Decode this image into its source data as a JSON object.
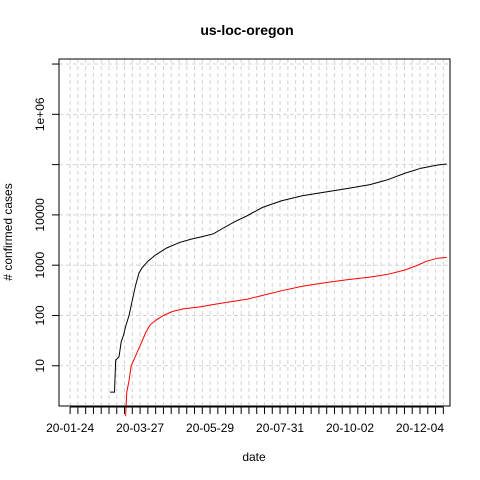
{
  "chart_data": {
    "type": "line",
    "title": "us-loc-oregon",
    "xlabel": "date",
    "ylabel": "# confirmed cases",
    "y_scale": "log",
    "y_tick_labels": [
      "10",
      "100",
      "1000",
      "10000",
      "1e+06"
    ],
    "y_ticks": [
      10,
      100,
      1000,
      10000,
      1000000
    ],
    "x_tick_labels": [
      "20-01-24",
      "20-03-27",
      "20-05-29",
      "20-07-31",
      "20-10-02",
      "20-12-04"
    ],
    "x_ticks": [
      "2020-01-24",
      "2020-03-27",
      "2020-05-29",
      "2020-07-31",
      "2020-10-02",
      "2020-12-04"
    ],
    "xlim": [
      "2020-01-14",
      "2020-12-31"
    ],
    "ylim_log10": [
      0.2,
      7.1
    ],
    "grid": true,
    "series": [
      {
        "color": "#000000",
        "points": [
          [
            "2020-02-29",
            3
          ],
          [
            "2020-03-04",
            3
          ],
          [
            "2020-03-05",
            13
          ],
          [
            "2020-03-08",
            15
          ],
          [
            "2020-03-10",
            30
          ],
          [
            "2020-03-12",
            40
          ],
          [
            "2020-03-14",
            60
          ],
          [
            "2020-03-17",
            100
          ],
          [
            "2020-03-20",
            200
          ],
          [
            "2020-03-23",
            400
          ],
          [
            "2020-03-26",
            700
          ],
          [
            "2020-03-29",
            900
          ],
          [
            "2020-04-03",
            1200
          ],
          [
            "2020-04-10",
            1600
          ],
          [
            "2020-04-20",
            2200
          ],
          [
            "2020-05-01",
            2800
          ],
          [
            "2020-05-12",
            3300
          ],
          [
            "2020-05-22",
            3700
          ],
          [
            "2020-06-01",
            4200
          ],
          [
            "2020-06-10",
            5500
          ],
          [
            "2020-06-20",
            7300
          ],
          [
            "2020-07-01",
            9500
          ],
          [
            "2020-07-15",
            14000
          ],
          [
            "2020-08-01",
            19000
          ],
          [
            "2020-08-20",
            24000
          ],
          [
            "2020-09-10",
            28500
          ],
          [
            "2020-10-01",
            34000
          ],
          [
            "2020-10-20",
            40000
          ],
          [
            "2020-11-05",
            50000
          ],
          [
            "2020-11-20",
            67000
          ],
          [
            "2020-12-05",
            85000
          ],
          [
            "2020-12-20",
            98000
          ],
          [
            "2020-12-28",
            103000
          ]
        ]
      },
      {
        "color": "#ff0000",
        "points": [
          [
            "2020-03-14",
            1
          ],
          [
            "2020-03-15",
            3
          ],
          [
            "2020-03-17",
            5
          ],
          [
            "2020-03-19",
            10
          ],
          [
            "2020-03-22",
            14
          ],
          [
            "2020-03-25",
            20
          ],
          [
            "2020-03-28",
            28
          ],
          [
            "2020-04-01",
            45
          ],
          [
            "2020-04-05",
            65
          ],
          [
            "2020-04-10",
            80
          ],
          [
            "2020-04-17",
            100
          ],
          [
            "2020-04-25",
            120
          ],
          [
            "2020-05-05",
            135
          ],
          [
            "2020-05-20",
            148
          ],
          [
            "2020-06-01",
            165
          ],
          [
            "2020-06-15",
            185
          ],
          [
            "2020-07-01",
            210
          ],
          [
            "2020-07-15",
            250
          ],
          [
            "2020-08-01",
            310
          ],
          [
            "2020-08-20",
            380
          ],
          [
            "2020-09-10",
            450
          ],
          [
            "2020-10-01",
            520
          ],
          [
            "2020-10-20",
            580
          ],
          [
            "2020-11-05",
            660
          ],
          [
            "2020-11-20",
            800
          ],
          [
            "2020-12-01",
            980
          ],
          [
            "2020-12-10",
            1200
          ],
          [
            "2020-12-20",
            1380
          ],
          [
            "2020-12-28",
            1430
          ]
        ]
      }
    ]
  }
}
